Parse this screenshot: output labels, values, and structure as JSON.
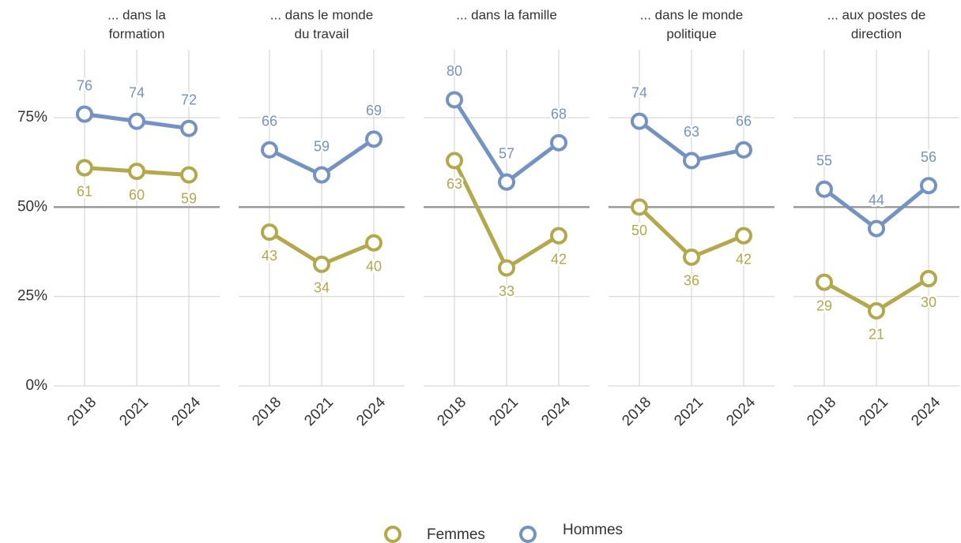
{
  "chart_data": [
    {
      "type": "line",
      "title": [
        "... dans la",
        "formation"
      ],
      "categories": [
        "2018",
        "2021",
        "2024"
      ],
      "series": [
        {
          "name": "Femmes",
          "color": "#b3a84c",
          "values": [
            61,
            60,
            59
          ]
        },
        {
          "name": "Hommes",
          "color": "#7592c4",
          "values": [
            76,
            74,
            72
          ]
        }
      ],
      "ylim": [
        0,
        94
      ],
      "yticks": [
        {
          "value": 0,
          "label": "0%"
        },
        {
          "value": 25,
          "label": "25%"
        },
        {
          "value": 50,
          "label": "50%"
        },
        {
          "value": 75,
          "label": "75%"
        }
      ],
      "reference_line": 50,
      "grid": true
    },
    {
      "type": "line",
      "title": [
        "... dans le monde",
        "du travail"
      ],
      "categories": [
        "2018",
        "2021",
        "2024"
      ],
      "series": [
        {
          "name": "Femmes",
          "color": "#b3a84c",
          "values": [
            43,
            34,
            40
          ]
        },
        {
          "name": "Hommes",
          "color": "#7592c4",
          "values": [
            66,
            59,
            69
          ]
        }
      ],
      "ylim": [
        0,
        94
      ],
      "yticks": [
        {
          "value": 0,
          "label": "0%"
        },
        {
          "value": 25,
          "label": "25%"
        },
        {
          "value": 50,
          "label": "50%"
        },
        {
          "value": 75,
          "label": "75%"
        }
      ],
      "reference_line": 50,
      "grid": true
    },
    {
      "type": "line",
      "title": [
        "... dans la famille"
      ],
      "categories": [
        "2018",
        "2021",
        "2024"
      ],
      "series": [
        {
          "name": "Femmes",
          "color": "#b3a84c",
          "values": [
            63,
            33,
            42
          ]
        },
        {
          "name": "Hommes",
          "color": "#7592c4",
          "values": [
            80,
            57,
            68
          ]
        }
      ],
      "ylim": [
        0,
        94
      ],
      "yticks": [
        {
          "value": 0,
          "label": "0%"
        },
        {
          "value": 25,
          "label": "25%"
        },
        {
          "value": 50,
          "label": "50%"
        },
        {
          "value": 75,
          "label": "75%"
        }
      ],
      "reference_line": 50,
      "grid": true
    },
    {
      "type": "line",
      "title": [
        "... dans le monde",
        "politique"
      ],
      "categories": [
        "2018",
        "2021",
        "2024"
      ],
      "series": [
        {
          "name": "Femmes",
          "color": "#b3a84c",
          "values": [
            50,
            36,
            42
          ]
        },
        {
          "name": "Hommes",
          "color": "#7592c4",
          "values": [
            74,
            63,
            66
          ]
        }
      ],
      "ylim": [
        0,
        94
      ],
      "yticks": [
        {
          "value": 0,
          "label": "0%"
        },
        {
          "value": 25,
          "label": "25%"
        },
        {
          "value": 50,
          "label": "50%"
        },
        {
          "value": 75,
          "label": "75%"
        }
      ],
      "reference_line": 50,
      "grid": true
    },
    {
      "type": "line",
      "title": [
        "... aux postes de",
        "direction"
      ],
      "categories": [
        "2018",
        "2021",
        "2024"
      ],
      "series": [
        {
          "name": "Femmes",
          "color": "#b3a84c",
          "values": [
            29,
            21,
            30
          ]
        },
        {
          "name": "Hommes",
          "color": "#7592c4",
          "values": [
            55,
            44,
            56
          ]
        }
      ],
      "ylim": [
        0,
        94
      ],
      "yticks": [
        {
          "value": 0,
          "label": "0%"
        },
        {
          "value": 25,
          "label": "25%"
        },
        {
          "value": 50,
          "label": "50%"
        },
        {
          "value": 75,
          "label": "75%"
        }
      ],
      "reference_line": 50,
      "grid": true
    }
  ]
}
